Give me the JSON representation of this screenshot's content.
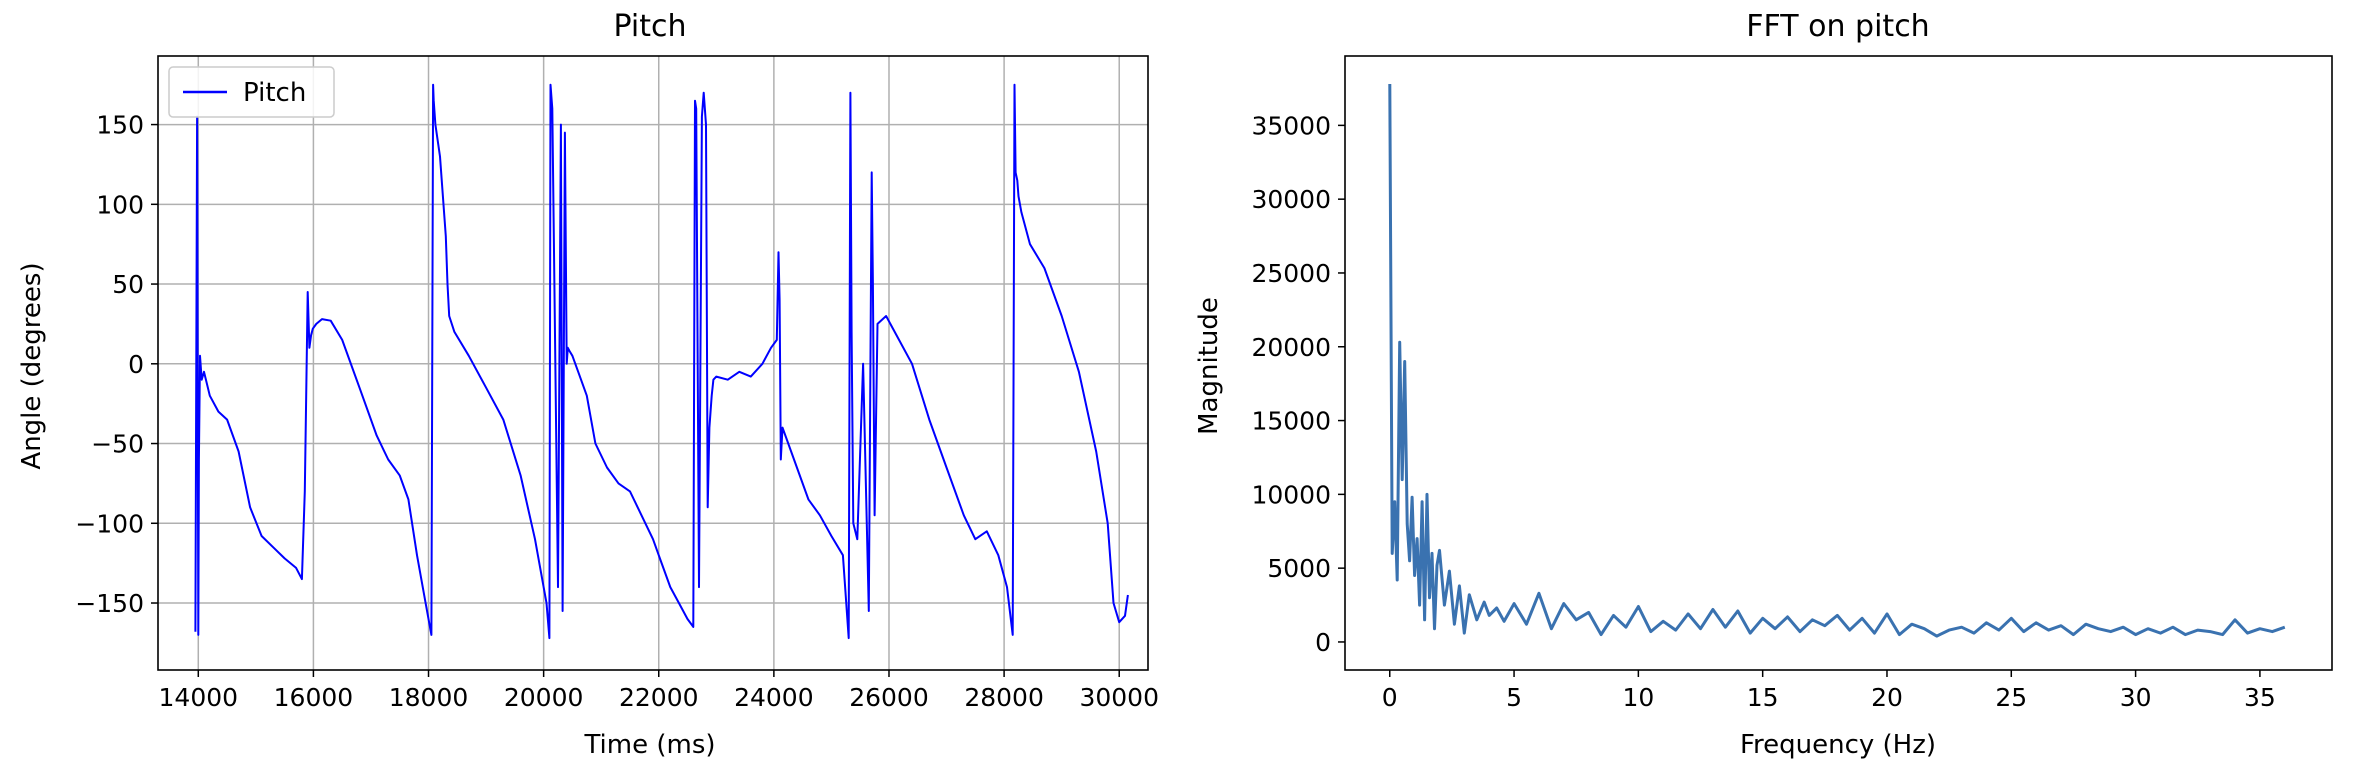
{
  "chart_data": [
    {
      "type": "line",
      "title": "Pitch",
      "xlabel": "Time (ms)",
      "ylabel": "Angle (degrees)",
      "xlim": [
        13300,
        30500
      ],
      "ylim": [
        -192,
        193
      ],
      "xticks": [
        14000,
        16000,
        18000,
        20000,
        22000,
        24000,
        26000,
        28000,
        30000
      ],
      "yticks": [
        -150,
        -100,
        -50,
        0,
        50,
        100,
        150
      ],
      "grid": true,
      "legend": "upper-left",
      "color": "#0000ff",
      "series": [
        {
          "name": "Pitch",
          "x": [
            13950,
            13980,
            14000,
            14010,
            14030,
            14060,
            14100,
            14200,
            14350,
            14500,
            14700,
            14900,
            15100,
            15300,
            15500,
            15700,
            15800,
            15850,
            15900,
            15930,
            15960,
            15990,
            16050,
            16150,
            16300,
            16500,
            16800,
            17100,
            17300,
            17500,
            17650,
            17800,
            17950,
            18050,
            18080,
            18090,
            18120,
            18200,
            18300,
            18330,
            18360,
            18450,
            18700,
            19000,
            19300,
            19600,
            19850,
            20050,
            20100,
            20120,
            20150,
            20250,
            20300,
            20330,
            20370,
            20400,
            20420,
            20450,
            20500,
            20600,
            20750,
            20900,
            21100,
            21300,
            21500,
            21700,
            21900,
            22050,
            22200,
            22350,
            22500,
            22600,
            22630,
            22650,
            22700,
            22750,
            22780,
            22820,
            22850,
            22880,
            22920,
            22950,
            23000,
            23200,
            23400,
            23600,
            23800,
            23950,
            24050,
            24080,
            24100,
            24120,
            24150,
            24200,
            24400,
            24600,
            24800,
            25000,
            25200,
            25300,
            25330,
            25350,
            25380,
            25450,
            25550,
            25650,
            25700,
            25720,
            25750,
            25800,
            25950,
            26100,
            26400,
            26700,
            27000,
            27300,
            27500,
            27700,
            27900,
            28050,
            28150,
            28180,
            28200,
            28230,
            28250,
            28300,
            28450,
            28700,
            29000,
            29300,
            29600,
            29800,
            29900,
            30000,
            30100,
            30150
          ],
          "y": [
            -168,
            155,
            -170,
            -60,
            5,
            -10,
            -5,
            -20,
            -30,
            -35,
            -55,
            -90,
            -108,
            -115,
            -122,
            -128,
            -135,
            -80,
            45,
            10,
            18,
            22,
            25,
            28,
            27,
            15,
            -15,
            -45,
            -60,
            -70,
            -85,
            -120,
            -150,
            -170,
            175,
            165,
            150,
            130,
            80,
            50,
            30,
            20,
            5,
            -15,
            -35,
            -70,
            -110,
            -150,
            -172,
            175,
            160,
            -140,
            150,
            -155,
            145,
            0,
            10,
            8,
            5,
            -5,
            -20,
            -50,
            -65,
            -75,
            -80,
            -95,
            -110,
            -125,
            -140,
            -150,
            -160,
            -165,
            165,
            160,
            -140,
            155,
            170,
            150,
            -90,
            -40,
            -20,
            -10,
            -8,
            -10,
            -5,
            -8,
            0,
            10,
            15,
            70,
            40,
            -60,
            -40,
            -45,
            -65,
            -85,
            -95,
            -108,
            -120,
            -172,
            170,
            20,
            -100,
            -110,
            0,
            -155,
            120,
            50,
            -95,
            25,
            30,
            20,
            0,
            -35,
            -65,
            -95,
            -110,
            -105,
            -120,
            -140,
            -170,
            175,
            120,
            115,
            105,
            95,
            75,
            60,
            30,
            -5,
            -55,
            -100,
            -150,
            -162,
            -158,
            -145
          ],
          "note_values": []
        }
      ]
    },
    {
      "type": "line",
      "title": "FFT on pitch",
      "xlabel": "Frequency (Hz)",
      "ylabel": "Magnitude",
      "xlim": [
        -1.8,
        37.9
      ],
      "ylim": [
        -1900,
        39700
      ],
      "xticks": [
        0,
        5,
        10,
        15,
        20,
        25,
        30,
        35
      ],
      "yticks": [
        0,
        5000,
        10000,
        15000,
        20000,
        25000,
        30000,
        35000
      ],
      "grid": false,
      "color": "#3a72b0",
      "series": [
        {
          "x": [
            0,
            0.1,
            0.2,
            0.3,
            0.4,
            0.5,
            0.6,
            0.7,
            0.8,
            0.9,
            1.0,
            1.1,
            1.2,
            1.3,
            1.4,
            1.5,
            1.6,
            1.7,
            1.8,
            1.9,
            2.0,
            2.2,
            2.4,
            2.6,
            2.8,
            3.0,
            3.2,
            3.5,
            3.8,
            4.0,
            4.3,
            4.6,
            5.0,
            5.5,
            6.0,
            6.5,
            7.0,
            7.5,
            8.0,
            8.5,
            9.0,
            9.5,
            10.0,
            10.5,
            11.0,
            11.5,
            12.0,
            12.5,
            13.0,
            13.5,
            14.0,
            14.5,
            15.0,
            15.5,
            16.0,
            16.5,
            17.0,
            17.5,
            18.0,
            18.5,
            19.0,
            19.5,
            20.0,
            20.5,
            21.0,
            21.5,
            22.0,
            22.5,
            23.0,
            23.5,
            24.0,
            24.5,
            25.0,
            25.5,
            26.0,
            26.5,
            27.0,
            27.5,
            28.0,
            28.5,
            29.0,
            29.5,
            30.0,
            30.5,
            31.0,
            31.5,
            32.0,
            32.5,
            33.0,
            33.5,
            34.0,
            34.5,
            35.0,
            35.5,
            36.0
          ],
          "y": [
            37800,
            6000,
            9500,
            4200,
            20300,
            11000,
            19000,
            8000,
            5500,
            9800,
            4500,
            7000,
            2500,
            9500,
            1500,
            10000,
            3000,
            6000,
            900,
            5200,
            6200,
            2500,
            4800,
            1200,
            3800,
            600,
            3200,
            1500,
            2700,
            1800,
            2300,
            1400,
            2600,
            1200,
            3300,
            900,
            2600,
            1500,
            2000,
            500,
            1800,
            1000,
            2400,
            700,
            1400,
            800,
            1900,
            900,
            2200,
            1000,
            2100,
            600,
            1600,
            900,
            1700,
            700,
            1500,
            1100,
            1800,
            800,
            1600,
            600,
            1900,
            500,
            1200,
            900,
            400,
            800,
            1000,
            600,
            1300,
            800,
            1600,
            700,
            1300,
            800,
            1100,
            500,
            1200,
            900,
            700,
            1000,
            500,
            900,
            600,
            1000,
            500,
            800,
            700,
            500,
            1500,
            600,
            900,
            700,
            1000
          ]
        }
      ]
    }
  ]
}
